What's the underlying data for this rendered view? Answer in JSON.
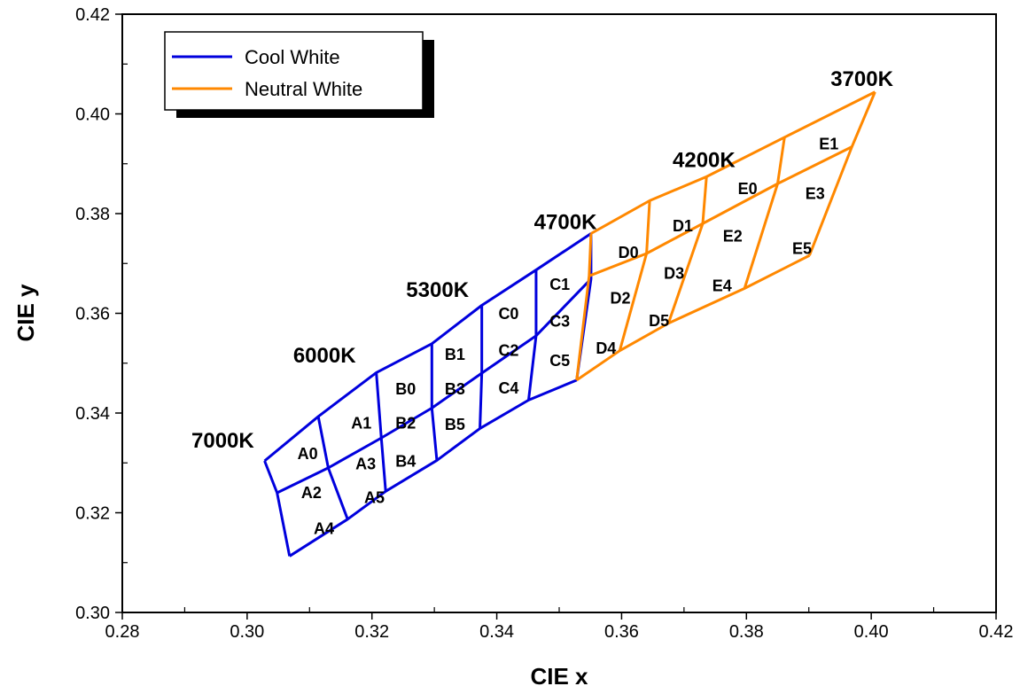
{
  "chart_data": {
    "type": "line",
    "xlabel": "CIE x",
    "ylabel": "CIE y",
    "xlim": [
      0.28,
      0.42
    ],
    "ylim": [
      0.3,
      0.42
    ],
    "x_ticks": [
      "0.28",
      "0.30",
      "0.32",
      "0.34",
      "0.36",
      "0.38",
      "0.40",
      "0.42"
    ],
    "y_ticks": [
      "0.30",
      "0.32",
      "0.34",
      "0.36",
      "0.38",
      "0.40",
      "0.42"
    ],
    "grid": false,
    "legend_position": "top-left",
    "series": [
      {
        "name": "Cool White",
        "color": "#0000dd",
        "x_columns": [
          0.3028,
          0.3114,
          0.3207,
          0.3296,
          0.3376,
          0.3463,
          0.3551
        ],
        "top": [
          [
            0.3028,
            0.3304
          ],
          [
            0.3114,
            0.3393
          ],
          [
            0.3207,
            0.3481
          ],
          [
            0.3296,
            0.3539
          ],
          [
            0.3376,
            0.3616
          ],
          [
            0.3463,
            0.3687
          ],
          [
            0.3551,
            0.376
          ]
        ],
        "mid": [
          [
            0.3048,
            0.324
          ],
          [
            0.313,
            0.329
          ],
          [
            0.3215,
            0.335
          ],
          [
            0.3296,
            0.341
          ],
          [
            0.3376,
            0.348
          ],
          [
            0.3463,
            0.3555
          ],
          [
            0.3551,
            0.3669
          ]
        ],
        "bot": [
          [
            0.3068,
            0.3113
          ],
          [
            0.3161,
            0.3187
          ],
          [
            0.3222,
            0.3243
          ],
          [
            0.3304,
            0.3305
          ],
          [
            0.3373,
            0.3369
          ],
          [
            0.3451,
            0.3426
          ],
          [
            0.3528,
            0.3466
          ]
        ]
      },
      {
        "name": "Neutral White",
        "color": "#ff8800",
        "x_columns": [
          0.3551,
          0.3645,
          0.3736,
          0.3861,
          0.4006
        ],
        "top": [
          [
            0.3551,
            0.376
          ],
          [
            0.3645,
            0.3826
          ],
          [
            0.3736,
            0.3874
          ],
          [
            0.3861,
            0.3953
          ],
          [
            0.4006,
            0.4044
          ]
        ],
        "mid": [
          [
            0.3548,
            0.3675
          ],
          [
            0.364,
            0.372
          ],
          [
            0.373,
            0.378
          ],
          [
            0.385,
            0.386
          ],
          [
            0.3969,
            0.3934
          ]
        ],
        "bot": [
          [
            0.3528,
            0.3466
          ],
          [
            0.3597,
            0.3525
          ],
          [
            0.3675,
            0.358
          ],
          [
            0.3797,
            0.365
          ],
          [
            0.3901,
            0.3716
          ]
        ]
      }
    ],
    "bin_labels": [
      {
        "text": "A0",
        "x": 0.3097,
        "y": 0.3318
      },
      {
        "text": "A1",
        "x": 0.3183,
        "y": 0.338
      },
      {
        "text": "A2",
        "x": 0.3103,
        "y": 0.324
      },
      {
        "text": "A3",
        "x": 0.319,
        "y": 0.3298
      },
      {
        "text": "A4",
        "x": 0.3123,
        "y": 0.3168
      },
      {
        "text": "A5",
        "x": 0.3204,
        "y": 0.323
      },
      {
        "text": "B0",
        "x": 0.3254,
        "y": 0.3448
      },
      {
        "text": "B1",
        "x": 0.3333,
        "y": 0.3517
      },
      {
        "text": "B2",
        "x": 0.3254,
        "y": 0.338
      },
      {
        "text": "B3",
        "x": 0.3333,
        "y": 0.3448
      },
      {
        "text": "B4",
        "x": 0.3254,
        "y": 0.3303
      },
      {
        "text": "B5",
        "x": 0.3333,
        "y": 0.3377
      },
      {
        "text": "C0",
        "x": 0.3419,
        "y": 0.3599
      },
      {
        "text": "C1",
        "x": 0.3501,
        "y": 0.3658
      },
      {
        "text": "C2",
        "x": 0.3419,
        "y": 0.3525
      },
      {
        "text": "C3",
        "x": 0.3501,
        "y": 0.3584
      },
      {
        "text": "C4",
        "x": 0.3419,
        "y": 0.345
      },
      {
        "text": "C5",
        "x": 0.3501,
        "y": 0.3505
      },
      {
        "text": "D0",
        "x": 0.3611,
        "y": 0.3722
      },
      {
        "text": "D1",
        "x": 0.3698,
        "y": 0.3775
      },
      {
        "text": "D2",
        "x": 0.3598,
        "y": 0.363
      },
      {
        "text": "D3",
        "x": 0.3684,
        "y": 0.368
      },
      {
        "text": "D4",
        "x": 0.3575,
        "y": 0.353
      },
      {
        "text": "D5",
        "x": 0.366,
        "y": 0.3585
      },
      {
        "text": "E0",
        "x": 0.3802,
        "y": 0.385
      },
      {
        "text": "E1",
        "x": 0.3932,
        "y": 0.394
      },
      {
        "text": "E2",
        "x": 0.3778,
        "y": 0.3755
      },
      {
        "text": "E3",
        "x": 0.391,
        "y": 0.384
      },
      {
        "text": "E4",
        "x": 0.3761,
        "y": 0.3655
      },
      {
        "text": "E5",
        "x": 0.3889,
        "y": 0.373
      }
    ],
    "cct_labels": [
      {
        "text": "7000K",
        "x": 0.2961,
        "y": 0.3345
      },
      {
        "text": "6000K",
        "x": 0.3124,
        "y": 0.3516
      },
      {
        "text": "5300K",
        "x": 0.3305,
        "y": 0.3647
      },
      {
        "text": "4700K",
        "x": 0.351,
        "y": 0.3783
      },
      {
        "text": "4200K",
        "x": 0.3732,
        "y": 0.3908
      },
      {
        "text": "3700K",
        "x": 0.3985,
        "y": 0.407
      }
    ]
  }
}
